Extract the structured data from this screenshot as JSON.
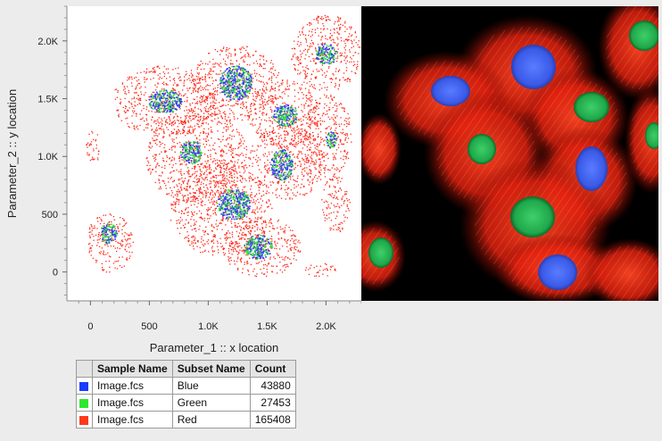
{
  "chart_data": {
    "type": "scatter",
    "xlabel": "Parameter_1 :: x location",
    "ylabel": "Parameter_2 :: y location",
    "xlim": [
      -200,
      2300
    ],
    "ylim": [
      -250,
      2300
    ],
    "x_ticks": [
      {
        "value": 0,
        "label": "0"
      },
      {
        "value": 500,
        "label": "500"
      },
      {
        "value": 1000,
        "label": "1.0K"
      },
      {
        "value": 1500,
        "label": "1.5K"
      },
      {
        "value": 2000,
        "label": "2.0K"
      }
    ],
    "y_ticks": [
      {
        "value": 0,
        "label": "0"
      },
      {
        "value": 500,
        "label": "500"
      },
      {
        "value": 1000,
        "label": "1.0K"
      },
      {
        "value": 1500,
        "label": "1.5K"
      },
      {
        "value": 2000,
        "label": "2.0K"
      }
    ],
    "series": [
      {
        "name": "Blue",
        "color": "#3535ff",
        "count": 43880,
        "clusters": [
          {
            "cx": 1230,
            "cy": 1640,
            "rx": 140,
            "ry": 150
          },
          {
            "cx": 630,
            "cy": 1480,
            "rx": 140,
            "ry": 100
          },
          {
            "cx": 1650,
            "cy": 1360,
            "rx": 110,
            "ry": 95
          },
          {
            "cx": 2000,
            "cy": 1890,
            "rx": 90,
            "ry": 95
          },
          {
            "cx": 850,
            "cy": 1040,
            "rx": 90,
            "ry": 105
          },
          {
            "cx": 1620,
            "cy": 930,
            "rx": 95,
            "ry": 135
          },
          {
            "cx": 2040,
            "cy": 1150,
            "rx": 45,
            "ry": 75
          },
          {
            "cx": 1210,
            "cy": 590,
            "rx": 140,
            "ry": 135
          },
          {
            "cx": 1420,
            "cy": 220,
            "rx": 120,
            "ry": 105
          },
          {
            "cx": 150,
            "cy": 340,
            "rx": 70,
            "ry": 90
          }
        ]
      },
      {
        "name": "Green",
        "color": "#33dd33",
        "count": 27453
      },
      {
        "name": "Red",
        "color": "#ff2a1a",
        "count": 165408,
        "clusters": [
          {
            "cx": 1230,
            "cy": 1640,
            "rx": 380,
            "ry": 330
          },
          {
            "cx": 630,
            "cy": 1480,
            "rx": 450,
            "ry": 310
          },
          {
            "cx": 1640,
            "cy": 1370,
            "rx": 300,
            "ry": 300
          },
          {
            "cx": 2000,
            "cy": 1900,
            "rx": 300,
            "ry": 330
          },
          {
            "cx": 2000,
            "cy": 1180,
            "rx": 220,
            "ry": 360
          },
          {
            "cx": 900,
            "cy": 1000,
            "rx": 430,
            "ry": 420
          },
          {
            "cx": 1660,
            "cy": 950,
            "rx": 330,
            "ry": 320
          },
          {
            "cx": 1100,
            "cy": 560,
            "rx": 440,
            "ry": 420
          },
          {
            "cx": 1450,
            "cy": 220,
            "rx": 330,
            "ry": 260
          },
          {
            "cx": 160,
            "cy": 260,
            "rx": 200,
            "ry": 260
          },
          {
            "cx": 2080,
            "cy": 600,
            "rx": 120,
            "ry": 260
          },
          {
            "cx": 20,
            "cy": 1090,
            "rx": 60,
            "ry": 150
          },
          {
            "cx": 1950,
            "cy": 20,
            "rx": 140,
            "ry": 60
          }
        ]
      }
    ]
  },
  "legend": {
    "headers": {
      "sample": "Sample Name",
      "subset": "Subset Name",
      "count": "Count"
    },
    "rows": [
      {
        "sample": "Image.fcs",
        "subset": "Blue",
        "count": "43880",
        "color": "#1a3cff"
      },
      {
        "sample": "Image.fcs",
        "subset": "Green",
        "count": "27453",
        "color": "#2ee82e"
      },
      {
        "sample": "Image.fcs",
        "subset": "Red",
        "count": "165408",
        "color": "#ff3a1a"
      }
    ]
  }
}
